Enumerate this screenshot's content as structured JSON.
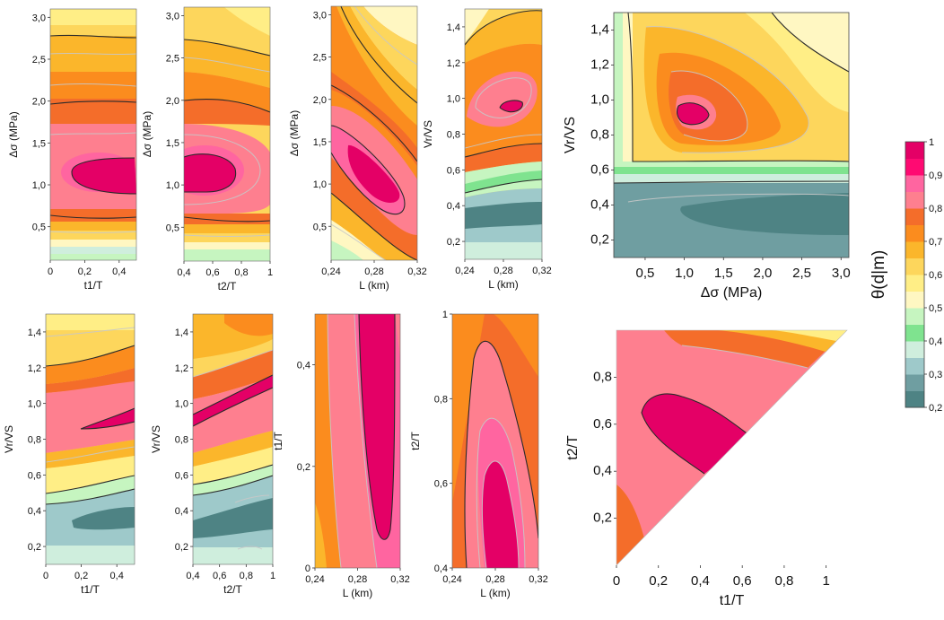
{
  "chart_data": {
    "type": "contour",
    "colorbar": {
      "title": "θ(d|m)",
      "levels": [
        0.2,
        0.3,
        0.4,
        0.5,
        0.6,
        0.7,
        0.8,
        0.9,
        1
      ],
      "labels": [
        "0,2",
        "0,3",
        "0,4",
        "0,5",
        "0,6",
        "0,7",
        "0,8",
        "0,9",
        "1"
      ],
      "colors": [
        "#4e8384",
        "#6f9ea1",
        "#9ec9ca",
        "#cfeedd",
        "#7fe38f",
        "#c6f5c0",
        "#fff7c2",
        "#ffee86",
        "#fdd65c",
        "#fbb62b",
        "#fb8c1e",
        "#f46d2a",
        "#fe7f8f",
        "#ff65a0",
        "#ff0a72",
        "#e40066"
      ]
    },
    "panels": [
      {
        "id": "p1",
        "xlabel": "t1/T",
        "ylabel": "Δσ (MPa)",
        "xticks": [
          "0",
          "0,2",
          "0,4"
        ],
        "yticks": [
          "0,5",
          "1,0",
          "1,5",
          "2,0",
          "2,5",
          "3,0"
        ],
        "xlim": [
          0,
          0.5
        ],
        "ylim": [
          0.1,
          3.1
        ],
        "peak": {
          "x": 0.35,
          "y": 1.1
        }
      },
      {
        "id": "p2",
        "xlabel": "t2/T",
        "ylabel": "Δσ (MPa)",
        "xticks": [
          "0,4",
          "0,6",
          "0,8",
          "1"
        ],
        "yticks": [
          "0,5",
          "1,0",
          "1,5",
          "2,0",
          "2,5",
          "3,0"
        ],
        "xlim": [
          0.4,
          1.0
        ],
        "ylim": [
          0.1,
          3.1
        ],
        "peak": {
          "x": 0.5,
          "y": 1.1
        }
      },
      {
        "id": "p3",
        "xlabel": "L (km)",
        "ylabel": "Δσ (MPa)",
        "xticks": [
          "0,24",
          "0,28",
          "0,32"
        ],
        "yticks": [
          "0,5",
          "1,0",
          "1,5",
          "2,0",
          "2,5",
          "3,0"
        ],
        "xlim": [
          0.24,
          0.32
        ],
        "ylim": [
          0.1,
          3.1
        ],
        "peak": {
          "x": 0.28,
          "y": 1.05
        }
      },
      {
        "id": "p4",
        "xlabel": "L (km)",
        "ylabel": "Vr/VS",
        "xticks": [
          "0,24",
          "0,28",
          "0,32"
        ],
        "yticks": [
          "0,2",
          "0,4",
          "0,6",
          "0,8",
          "1,0",
          "1,2",
          "1,4"
        ],
        "xlim": [
          0.24,
          0.32
        ],
        "ylim": [
          0.1,
          1.5
        ],
        "peak": {
          "x": 0.285,
          "y": 0.9
        }
      },
      {
        "id": "p5",
        "xlabel": "Δσ (MPa)",
        "ylabel": "Vr/VS",
        "xticks": [
          "0,5",
          "1,0",
          "1,5",
          "2,0",
          "2,5",
          "3,0"
        ],
        "yticks": [
          "0,2",
          "0,4",
          "0,6",
          "0,8",
          "1,0",
          "1,2",
          "1,4"
        ],
        "xlim": [
          0.1,
          3.1
        ],
        "ylim": [
          0.1,
          1.5
        ],
        "peak": {
          "x": 1.05,
          "y": 0.9
        }
      },
      {
        "id": "p6",
        "xlabel": "t1/T",
        "ylabel": "Vr/VS",
        "xticks": [
          "0",
          "0,2",
          "0,4"
        ],
        "yticks": [
          "0,2",
          "0,4",
          "0,6",
          "0,8",
          "1,0",
          "1,2",
          "1,4"
        ],
        "xlim": [
          0,
          0.5
        ],
        "ylim": [
          0.1,
          1.5
        ],
        "peak": {
          "x": 0.4,
          "y": 0.9
        }
      },
      {
        "id": "p7",
        "xlabel": "t2/T",
        "ylabel": "Vr/VS",
        "xticks": [
          "0,4",
          "0,6",
          "0,8",
          "1"
        ],
        "yticks": [
          "0,2",
          "0,4",
          "0,6",
          "0,8",
          "1,0",
          "1,2",
          "1,4"
        ],
        "xlim": [
          0.4,
          1.0
        ],
        "ylim": [
          0.1,
          1.5
        ],
        "peak": {
          "x": 0.7,
          "y": 1.0
        }
      },
      {
        "id": "p8",
        "xlabel": "L (km)",
        "ylabel": "t1/T",
        "xticks": [
          "0,24",
          "0,28",
          "0,32"
        ],
        "yticks": [
          "0",
          "0,2",
          "0,4"
        ],
        "xlim": [
          0.24,
          0.32
        ],
        "ylim": [
          0,
          0.5
        ],
        "peak": {
          "x": 0.29,
          "y": 0.25
        }
      },
      {
        "id": "p9",
        "xlabel": "L (km)",
        "ylabel": "t2/T",
        "xticks": [
          "0,24",
          "0,28",
          "0,32"
        ],
        "yticks": [
          "0,4",
          "0,6",
          "0,8",
          "1"
        ],
        "xlim": [
          0.24,
          0.32
        ],
        "ylim": [
          0.4,
          1.0
        ],
        "peak": {
          "x": 0.28,
          "y": 0.55
        }
      },
      {
        "id": "p10",
        "xlabel": "t1/T",
        "ylabel": "t2/T",
        "xticks": [
          "0",
          "0,2",
          "0,4",
          "0,6",
          "0,8",
          "1"
        ],
        "yticks": [
          "0,2",
          "0,4",
          "0,6",
          "0,8"
        ],
        "xlim": [
          0,
          1.1
        ],
        "ylim": [
          0,
          1.0
        ],
        "peak": {
          "x": 0.3,
          "y": 0.62
        }
      }
    ]
  }
}
